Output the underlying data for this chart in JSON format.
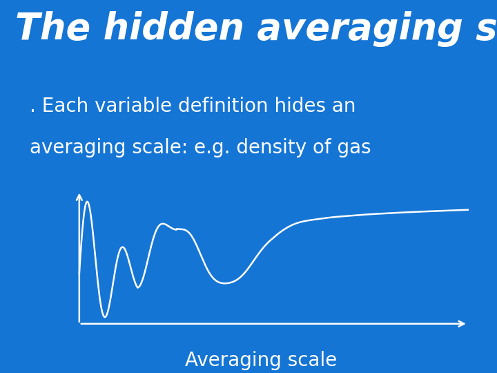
{
  "title": "The hidden averaging scale",
  "subtitle_line1": ". Each variable definition hides an",
  "subtitle_line2": "averaging scale: e.g. density of gas",
  "xlabel": "Averaging scale",
  "bg_color": "#1575d4",
  "text_color": "#ffffff",
  "curve_color": "#ffffff",
  "title_fontsize": 38,
  "subtitle_fontsize": 20,
  "xlabel_fontsize": 20,
  "title_fontstyle": "italic",
  "title_fontweight": "bold"
}
